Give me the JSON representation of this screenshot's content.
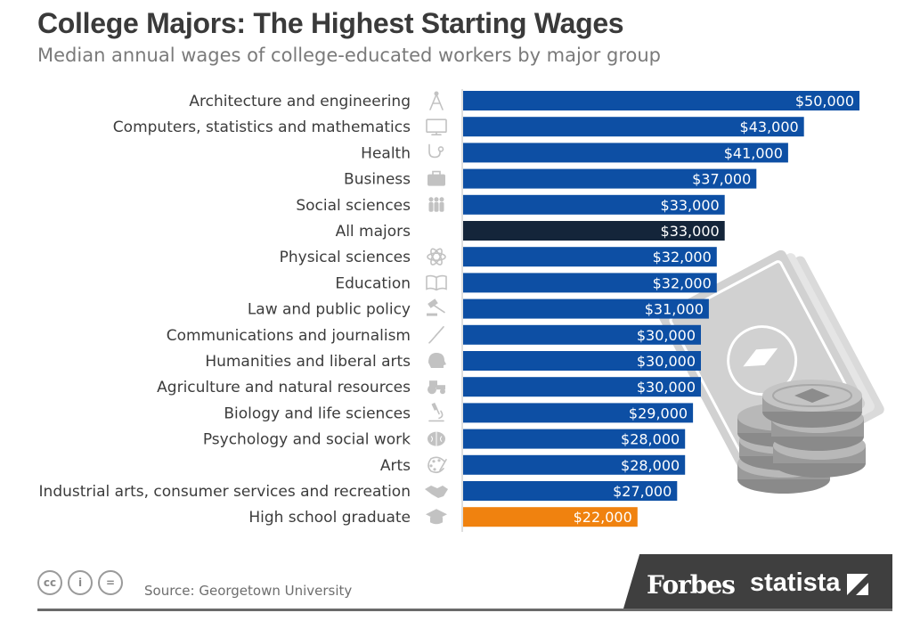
{
  "header": {
    "title": "College Majors: The Highest Starting Wages",
    "subtitle": "Median annual wages of college-educated workers by major group"
  },
  "footer": {
    "source": "Source: Georgetown University",
    "brand_forbes": "Forbes",
    "brand_statista": "statista",
    "license_icons": [
      "cc-icon",
      "attribution-icon",
      "no-derivatives-icon"
    ],
    "license_glyphs": [
      "cc",
      "i",
      "="
    ]
  },
  "colors": {
    "bar_default": "#0d4fa4",
    "bar_highlight": "#14253a",
    "bar_highschool": "#f0820f",
    "label_text": "#3c3c3c",
    "icon_gray": "#c2c2c2"
  },
  "chart_data": {
    "type": "bar",
    "orientation": "horizontal",
    "title": "College Majors: The Highest Starting Wages",
    "subtitle": "Median annual wages of college-educated workers by major group",
    "xlabel": "",
    "ylabel": "",
    "xlim": [
      0,
      50000
    ],
    "grid": false,
    "categories": [
      "Architecture and engineering",
      "Computers, statistics and mathematics",
      "Health",
      "Business",
      "Social sciences",
      "All majors",
      "Physical sciences",
      "Education",
      "Law and public policy",
      "Communications and journalism",
      "Humanities and liberal arts",
      "Agriculture and natural resources",
      "Biology and life sciences",
      "Psychology and social work",
      "Arts",
      "Industrial arts, consumer services and recreation",
      "High school graduate"
    ],
    "values": [
      50000,
      43000,
      41000,
      37000,
      33000,
      33000,
      32000,
      32000,
      31000,
      30000,
      30000,
      30000,
      29000,
      28000,
      28000,
      27000,
      22000
    ],
    "value_labels": [
      "$50,000",
      "$43,000",
      "$41,000",
      "$37,000",
      "$33,000",
      "$33,000",
      "$32,000",
      "$32,000",
      "$31,000",
      "$30,000",
      "$30,000",
      "$30,000",
      "$29,000",
      "$28,000",
      "$28,000",
      "$27,000",
      "$22,000"
    ],
    "icons": [
      "compass-icon",
      "monitor-icon",
      "stethoscope-icon",
      "briefcase-icon",
      "people-icon",
      "",
      "atom-icon",
      "book-icon",
      "gavel-icon",
      "pen-icon",
      "head-icon",
      "tractor-icon",
      "microscope-icon",
      "brain-icon",
      "palette-icon",
      "handshake-icon",
      "graduation-cap-icon"
    ],
    "highlight": {
      "All majors": "dark",
      "High school graduate": "orange"
    }
  }
}
